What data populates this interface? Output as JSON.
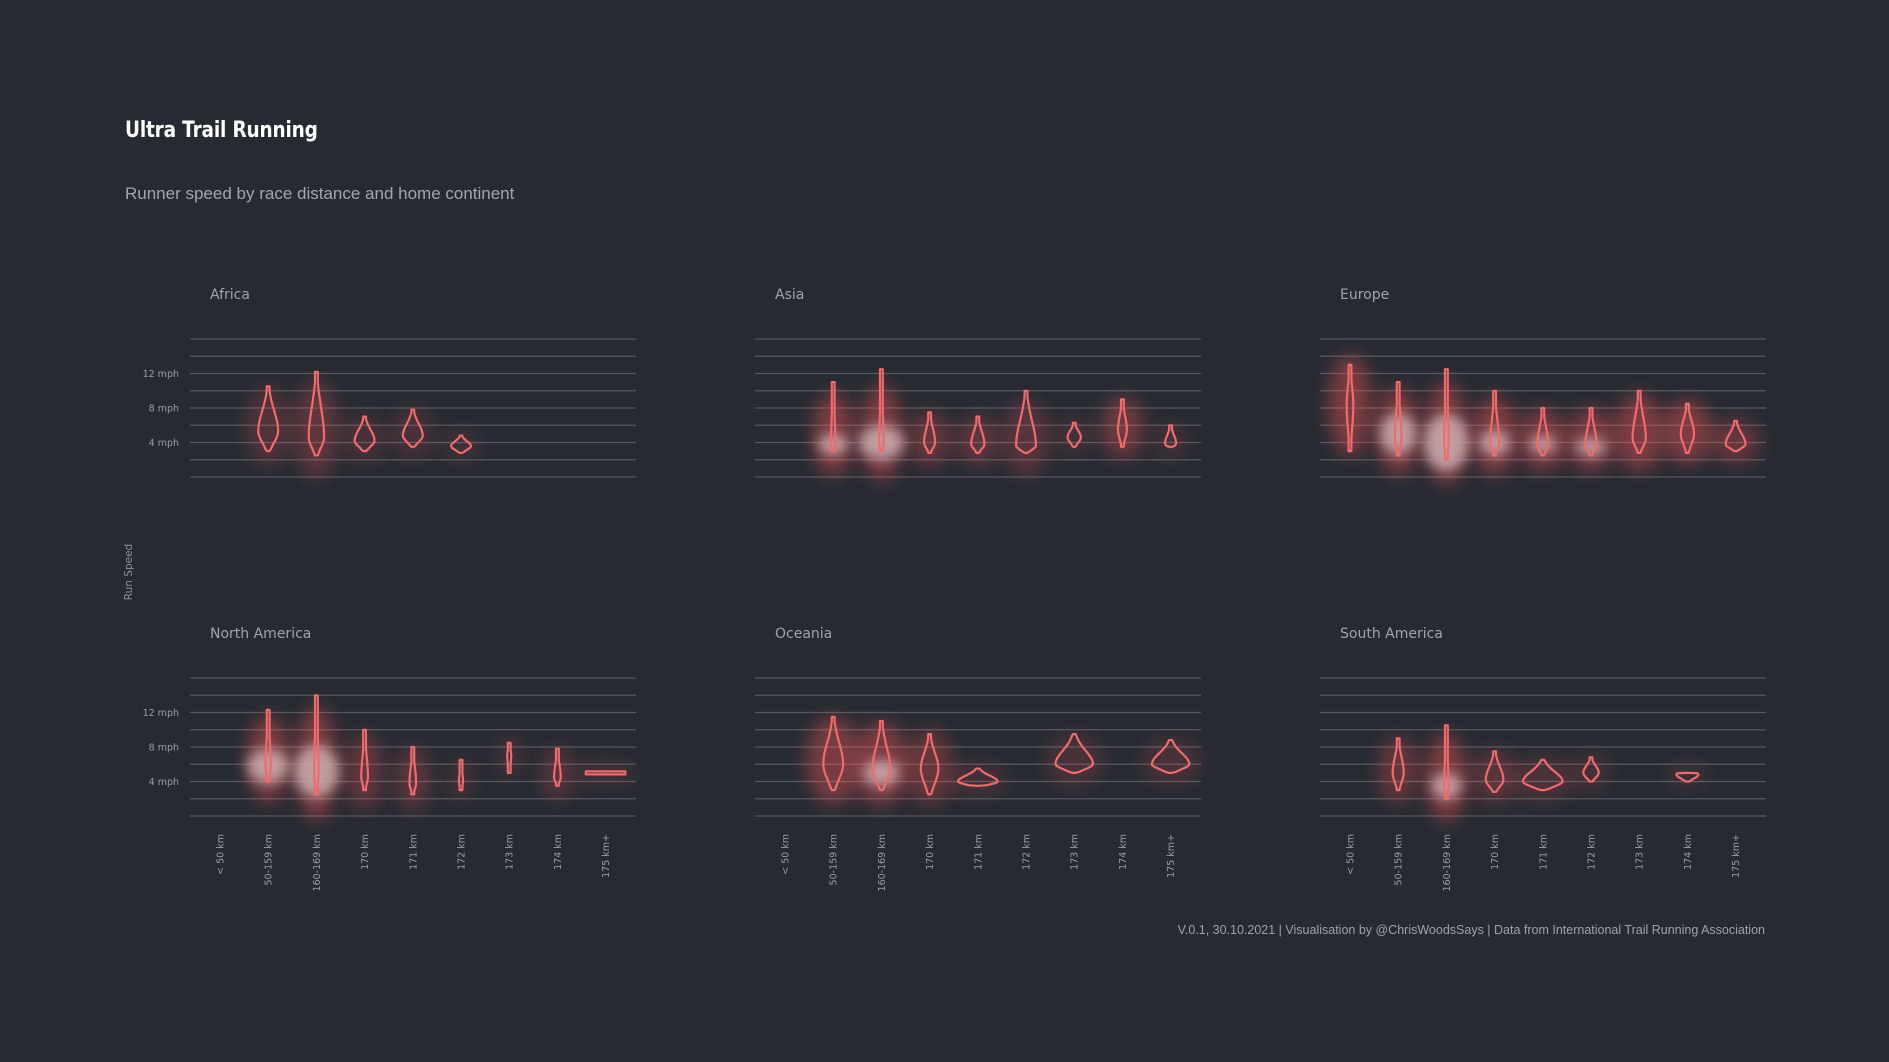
{
  "title": "Ultra Trail Running",
  "subtitle": "Runner speed by race distance and home continent",
  "footer": "V.0.1, 30.10.2021  |  Visualisation by @ChrisWoodsSays  |  Data from International Trail Running Association",
  "colors": {
    "background": "#262a32",
    "violin_stroke": "#f26a6a",
    "glow": "#ff5a5a",
    "blob_fill": "#c7a7ab",
    "gridline": "#545961",
    "text_muted": "#a0a4aa"
  },
  "chart_data": {
    "type": "violin",
    "facets": [
      "Africa",
      "Asia",
      "Europe",
      "North America",
      "Oceania",
      "South America"
    ],
    "layout": "3 columns x 2 rows",
    "ylabel": "Run Speed",
    "y_ticks": [
      "12 mph",
      "8 mph",
      "4 mph"
    ],
    "ylim": [
      0,
      16
    ],
    "gridlines": [
      0,
      2,
      4,
      6,
      8,
      10,
      12,
      14,
      16
    ],
    "categories": [
      "< 50 km",
      "50-159 km",
      "160-169 km",
      "170 km",
      "171 km",
      "172 km",
      "173 km",
      "174 km",
      "175 km+"
    ],
    "series": [
      {
        "name": "Africa",
        "violins": [
          {
            "category": "50-159 km",
            "min": 3.0,
            "max": 10.5,
            "mode": 5.3,
            "width": 0.45,
            "glow": 0.3
          },
          {
            "category": "160-169 km",
            "min": 2.5,
            "max": 12.2,
            "mode": 4.6,
            "width": 0.35,
            "glow": 0.5
          },
          {
            "category": "170 km",
            "min": 3.0,
            "max": 7.0,
            "mode": 4.2,
            "width": 0.45,
            "glow": 0.15
          },
          {
            "category": "171 km",
            "min": 3.5,
            "max": 7.8,
            "mode": 4.8,
            "width": 0.45,
            "glow": 0.15
          },
          {
            "category": "172 km",
            "min": 2.8,
            "max": 4.8,
            "mode": 3.6,
            "width": 0.45,
            "glow": 0.05
          }
        ]
      },
      {
        "name": "Asia",
        "violins": [
          {
            "category": "50-159 km",
            "min": 3.0,
            "max": 11.0,
            "mode": 3.9,
            "width": 0.1,
            "glow": 1,
            "blob": {
              "center": 3.8,
              "spread": 1.2,
              "width": 0.5
            }
          },
          {
            "category": "160-169 km",
            "min": 3.0,
            "max": 12.5,
            "mode": 3.8,
            "width": 0.1,
            "glow": 1,
            "blob": {
              "center": 4.0,
              "spread": 2.0,
              "width": 0.75
            }
          },
          {
            "category": "170 km",
            "min": 2.8,
            "max": 7.5,
            "mode": 4.0,
            "width": 0.25,
            "glow": 0.6
          },
          {
            "category": "171 km",
            "min": 2.8,
            "max": 7.0,
            "mode": 3.8,
            "width": 0.3,
            "glow": 0.5
          },
          {
            "category": "172 km",
            "min": 2.8,
            "max": 10.0,
            "mode": 3.6,
            "width": 0.45,
            "glow": 0.4
          },
          {
            "category": "173 km",
            "min": 3.5,
            "max": 6.3,
            "mode": 4.6,
            "width": 0.3,
            "glow": 0.1
          },
          {
            "category": "174 km",
            "min": 3.5,
            "max": 9.0,
            "mode": 5.5,
            "width": 0.2,
            "glow": 0.8
          },
          {
            "category": "175 km+",
            "min": 3.5,
            "max": 6.0,
            "mode": 3.9,
            "width": 0.25,
            "glow": 0.1
          }
        ]
      },
      {
        "name": "Europe",
        "violins": [
          {
            "category": "< 50 km",
            "min": 3.0,
            "max": 13.0,
            "mode": 8.5,
            "width": 0.15,
            "glow": 1
          },
          {
            "category": "50-159 km",
            "min": 2.5,
            "max": 11.0,
            "mode": 4.5,
            "width": 0.15,
            "glow": 1,
            "blob": {
              "center": 5.0,
              "spread": 2.4,
              "width": 0.6
            }
          },
          {
            "category": "160-169 km",
            "min": 2.0,
            "max": 12.5,
            "mode": 4.0,
            "width": 0.1,
            "glow": 1,
            "blob": {
              "center": 4.0,
              "spread": 3.3,
              "width": 0.75
            }
          },
          {
            "category": "170 km",
            "min": 2.5,
            "max": 10.0,
            "mode": 4.0,
            "width": 0.2,
            "glow": 1,
            "blob": {
              "center": 4.0,
              "spread": 1.5,
              "width": 0.5
            }
          },
          {
            "category": "171 km",
            "min": 2.5,
            "max": 8.0,
            "mode": 3.8,
            "width": 0.25,
            "glow": 1,
            "blob": {
              "center": 3.8,
              "spread": 1.0,
              "width": 0.45
            }
          },
          {
            "category": "172 km",
            "min": 2.5,
            "max": 8.0,
            "mode": 3.8,
            "width": 0.25,
            "glow": 1,
            "blob": {
              "center": 3.5,
              "spread": 1.0,
              "width": 0.5
            }
          },
          {
            "category": "173 km",
            "min": 2.8,
            "max": 10.0,
            "mode": 4.5,
            "width": 0.3,
            "glow": 1
          },
          {
            "category": "174 km",
            "min": 2.8,
            "max": 8.5,
            "mode": 5.0,
            "width": 0.3,
            "glow": 1
          },
          {
            "category": "175 km+",
            "min": 3.0,
            "max": 6.5,
            "mode": 3.8,
            "width": 0.45,
            "glow": 0.6
          }
        ]
      },
      {
        "name": "North America",
        "violins": [
          {
            "category": "50-159 km",
            "min": 4.0,
            "max": 12.3,
            "mode": 5.8,
            "width": 0.12,
            "glow": 1,
            "blob": {
              "center": 5.8,
              "spread": 2.0,
              "width": 0.7
            }
          },
          {
            "category": "160-169 km",
            "min": 2.5,
            "max": 14.0,
            "mode": 5.0,
            "width": 0.1,
            "glow": 1,
            "blob": {
              "center": 5.2,
              "spread": 3.0,
              "width": 0.75
            }
          },
          {
            "category": "170 km",
            "min": 3.0,
            "max": 10.0,
            "mode": 4.5,
            "width": 0.15,
            "glow": 0.6
          },
          {
            "category": "171 km",
            "min": 2.5,
            "max": 8.0,
            "mode": 3.8,
            "width": 0.15,
            "glow": 0.5
          },
          {
            "category": "172 km",
            "min": 3.0,
            "max": 6.5,
            "mode": 4.0,
            "width": 0.05,
            "glow": 0.1
          },
          {
            "category": "173 km",
            "min": 5.0,
            "max": 8.5,
            "mode": 7.0,
            "width": 0.05,
            "glow": 0.1
          },
          {
            "category": "174 km",
            "min": 3.5,
            "max": 7.8,
            "mode": 4.5,
            "width": 0.15,
            "glow": 0.4
          },
          {
            "category": "175 km+",
            "min": 5.0,
            "max": 5.0,
            "mode": 5.0,
            "width": 0.9,
            "glow": 0.1
          }
        ]
      },
      {
        "name": "Oceania",
        "violins": [
          {
            "category": "50-159 km",
            "min": 3.0,
            "max": 11.5,
            "mode": 6.0,
            "width": 0.45,
            "glow": 0.9
          },
          {
            "category": "160-169 km",
            "min": 3.0,
            "max": 11.0,
            "mode": 5.5,
            "width": 0.4,
            "glow": 1,
            "blob": {
              "center": 5.0,
              "spread": 1.5,
              "width": 0.6
            }
          },
          {
            "category": "170 km",
            "min": 2.5,
            "max": 9.5,
            "mode": 5.5,
            "width": 0.4,
            "glow": 0.6
          },
          {
            "category": "171 km",
            "min": 3.5,
            "max": 5.5,
            "mode": 4.0,
            "width": 0.9,
            "glow": 0.1
          },
          {
            "category": "173 km",
            "min": 5.0,
            "max": 9.5,
            "mode": 6.0,
            "width": 0.85,
            "glow": 0.15
          },
          {
            "category": "175 km+",
            "min": 5.0,
            "max": 8.8,
            "mode": 6.0,
            "width": 0.85,
            "glow": 0.15
          }
        ]
      },
      {
        "name": "South America",
        "violins": [
          {
            "category": "50-159 km",
            "min": 3.0,
            "max": 9.0,
            "mode": 5.0,
            "width": 0.25,
            "glow": 0.6
          },
          {
            "category": "160-169 km",
            "min": 2.0,
            "max": 10.5,
            "mode": 3.5,
            "width": 0.1,
            "glow": 1,
            "blob": {
              "center": 3.5,
              "spread": 1.5,
              "width": 0.5
            }
          },
          {
            "category": "170 km",
            "min": 2.8,
            "max": 7.5,
            "mode": 4.2,
            "width": 0.4,
            "glow": 0.4
          },
          {
            "category": "171 km",
            "min": 3.0,
            "max": 6.5,
            "mode": 4.0,
            "width": 0.9,
            "glow": 0.2
          },
          {
            "category": "172 km",
            "min": 4.0,
            "max": 6.8,
            "mode": 5.0,
            "width": 0.35,
            "glow": 0.1
          },
          {
            "category": "174 km",
            "min": 4.0,
            "max": 5.0,
            "mode": 4.8,
            "width": 0.5,
            "glow": 0.05
          }
        ]
      }
    ]
  }
}
